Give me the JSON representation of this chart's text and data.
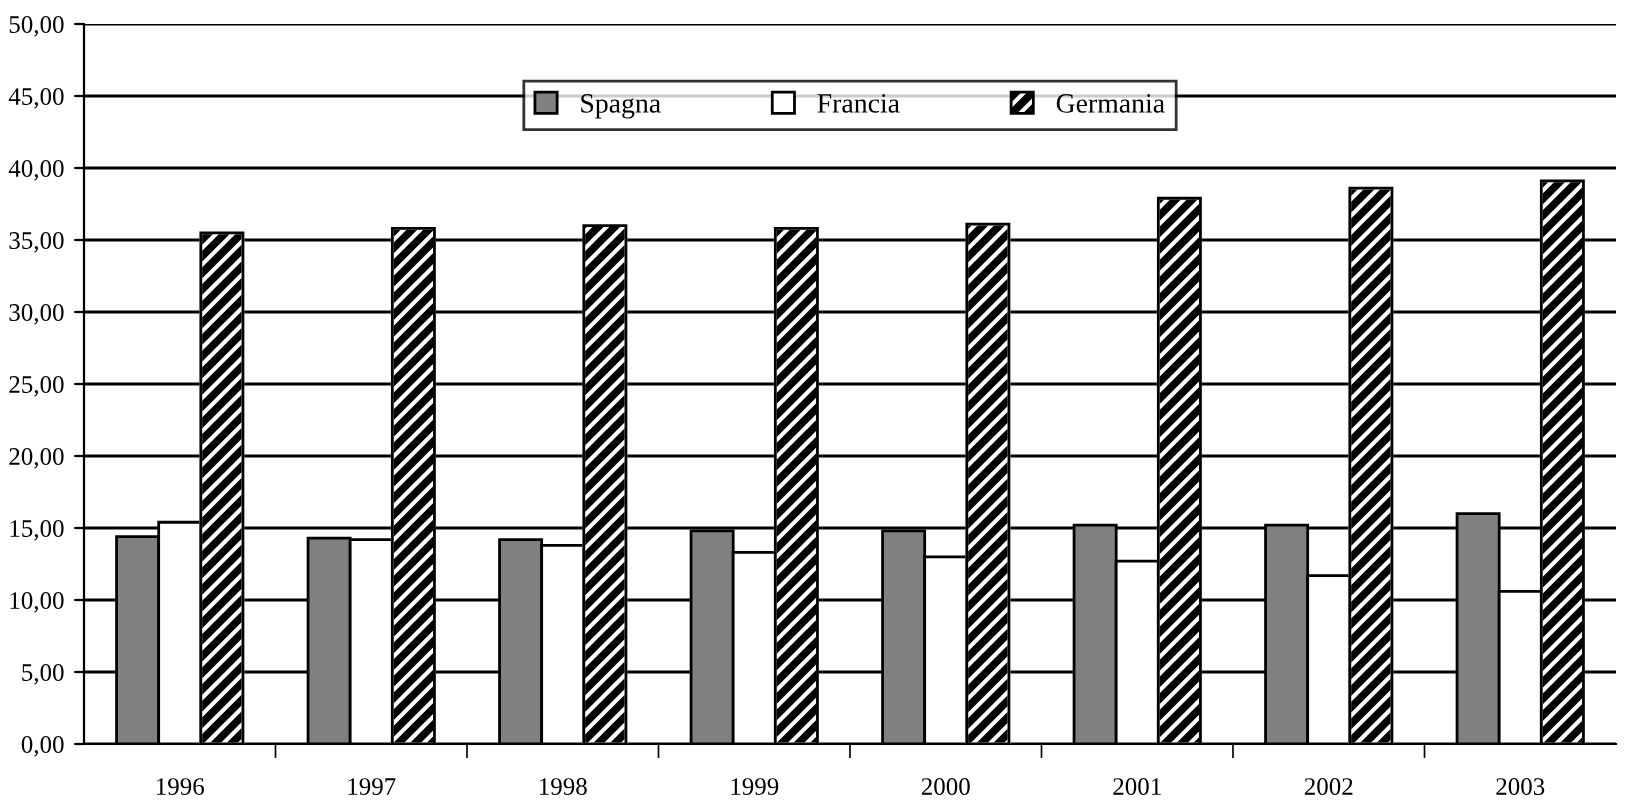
{
  "chart_data": {
    "type": "bar",
    "categories": [
      "1996",
      "1997",
      "1998",
      "1999",
      "2000",
      "2001",
      "2002",
      "2003"
    ],
    "series": [
      {
        "name": "Spagna",
        "color": "#808080",
        "values": [
          14.4,
          14.3,
          14.2,
          14.8,
          14.8,
          15.2,
          15.2,
          16.0
        ]
      },
      {
        "name": "Francia",
        "color": "#ffffff",
        "values": [
          15.4,
          14.2,
          13.8,
          13.3,
          13.0,
          12.7,
          11.7,
          10.6
        ]
      },
      {
        "name": "Germania",
        "color": "#000000",
        "values": [
          35.5,
          35.8,
          36.0,
          35.8,
          36.1,
          37.9,
          38.6,
          39.1
        ]
      }
    ],
    "ylim": [
      0,
      50
    ],
    "yticks": [
      {
        "value": 0,
        "label": "0,00"
      },
      {
        "value": 5,
        "label": "5,00"
      },
      {
        "value": 10,
        "label": "10,00"
      },
      {
        "value": 15,
        "label": "15,00"
      },
      {
        "value": 20,
        "label": "20,00"
      },
      {
        "value": 25,
        "label": "25,00"
      },
      {
        "value": 30,
        "label": "30,00"
      },
      {
        "value": 35,
        "label": "35,00"
      },
      {
        "value": 40,
        "label": "40,00"
      },
      {
        "value": 45,
        "label": "45,00"
      },
      {
        "value": 50,
        "label": "50,00"
      }
    ],
    "grid": "y",
    "legend": "top"
  }
}
